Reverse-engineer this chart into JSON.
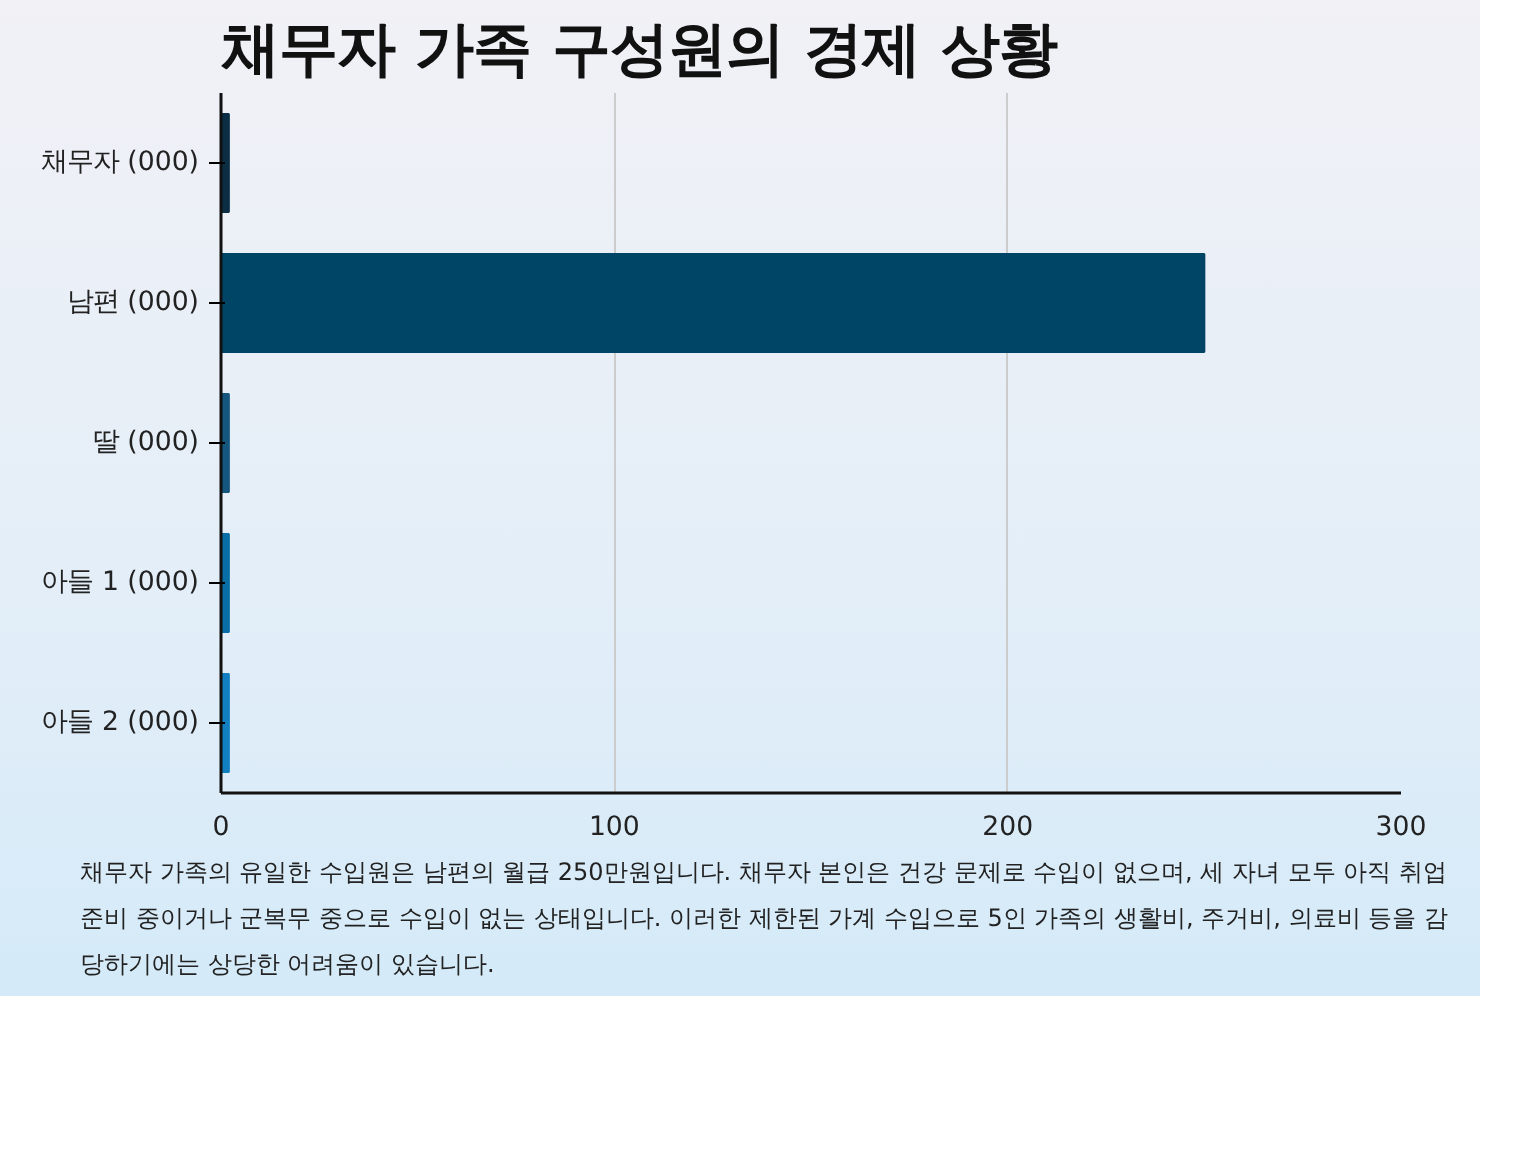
{
  "chart_data": {
    "type": "bar",
    "orientation": "horizontal",
    "title": "채무자 가족 구성원의 경제 상황",
    "categories": [
      "채무자 (000)",
      "남편 (000)",
      "딸 (000)",
      "아들 1 (000)",
      "아들 2 (000)"
    ],
    "values": [
      2,
      250,
      2,
      2,
      2
    ],
    "colors": [
      "#0b2e44",
      "#004466",
      "#15567f",
      "#0a6ea6",
      "#1280c0"
    ],
    "xlim": [
      0,
      300
    ],
    "xticks": [
      0,
      100,
      200,
      300
    ],
    "grid": "x",
    "annotations": [
      "채무자 가족의 유일한 수입원은 남편의 월급 250만원입니다. 채무자 본인은 건강 문제로 수입이 없으며, 세 자녀 모두 아직 취업 준비 중이거나 군복무 중으로 수입이 없는 상태입니다. 이러한 제한된 가계 수입으로 5인 가족의 생활비, 주거비, 의료비 등을 감당하기에는 상당한 어려움이 있습니다."
    ]
  }
}
